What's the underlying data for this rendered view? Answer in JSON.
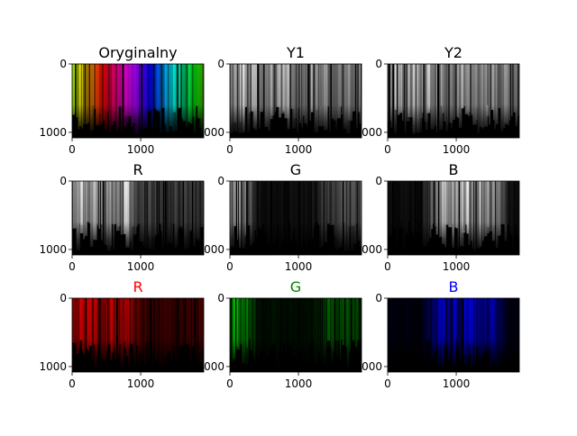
{
  "figure": {
    "background": "#ffffff"
  },
  "chart_data": [
    {
      "type": "heatmap",
      "title": "Oryginalny",
      "title_color": "#000000",
      "image_style": "rainbow-original",
      "xlim": [
        0,
        1920
      ],
      "ylim": [
        1080,
        0
      ],
      "xticks": [
        0,
        1000
      ],
      "yticks": [
        0,
        1000
      ],
      "xtick_labels": [
        "0",
        "1000"
      ],
      "ytick_labels": [
        "0",
        "1000"
      ]
    },
    {
      "type": "heatmap",
      "title": "Y1",
      "title_color": "#000000",
      "image_style": "gray-luma",
      "xlim": [
        0,
        1920
      ],
      "ylim": [
        1080,
        0
      ],
      "xticks": [
        0,
        1000
      ],
      "yticks": [
        0,
        1000
      ],
      "xtick_labels": [
        "0",
        "1000"
      ],
      "ytick_labels": [
        "0",
        "1000"
      ]
    },
    {
      "type": "heatmap",
      "title": "Y2",
      "title_color": "#000000",
      "image_style": "gray-luma",
      "xlim": [
        0,
        1920
      ],
      "ylim": [
        1080,
        0
      ],
      "xticks": [
        0,
        1000
      ],
      "yticks": [
        0,
        1000
      ],
      "xtick_labels": [
        "0",
        "1000"
      ],
      "ytick_labels": [
        "0",
        "1000"
      ]
    },
    {
      "type": "heatmap",
      "title": "R",
      "title_color": "#000000",
      "image_style": "gray-red",
      "xlim": [
        0,
        1920
      ],
      "ylim": [
        1080,
        0
      ],
      "xticks": [
        0,
        1000
      ],
      "yticks": [
        0,
        1000
      ],
      "xtick_labels": [
        "0",
        "1000"
      ],
      "ytick_labels": [
        "0",
        "1000"
      ]
    },
    {
      "type": "heatmap",
      "title": "G",
      "title_color": "#000000",
      "image_style": "gray-green",
      "xlim": [
        0,
        1920
      ],
      "ylim": [
        1080,
        0
      ],
      "xticks": [
        0,
        1000
      ],
      "yticks": [
        0,
        1000
      ],
      "xtick_labels": [
        "0",
        "1000"
      ],
      "ytick_labels": [
        "0",
        "1000"
      ]
    },
    {
      "type": "heatmap",
      "title": "B",
      "title_color": "#000000",
      "image_style": "gray-blue",
      "xlim": [
        0,
        1920
      ],
      "ylim": [
        1080,
        0
      ],
      "xticks": [
        0,
        1000
      ],
      "yticks": [
        0,
        1000
      ],
      "xtick_labels": [
        "0",
        "1000"
      ],
      "ytick_labels": [
        "0",
        "1000"
      ]
    },
    {
      "type": "heatmap",
      "title": "R",
      "title_color": "#ff0000",
      "image_style": "channel-red",
      "xlim": [
        0,
        1920
      ],
      "ylim": [
        1080,
        0
      ],
      "xticks": [
        0,
        1000
      ],
      "yticks": [
        0,
        1000
      ],
      "xtick_labels": [
        "0",
        "1000"
      ],
      "ytick_labels": [
        "0",
        "1000"
      ]
    },
    {
      "type": "heatmap",
      "title": "G",
      "title_color": "#008000",
      "image_style": "channel-green",
      "xlim": [
        0,
        1920
      ],
      "ylim": [
        1080,
        0
      ],
      "xticks": [
        0,
        1000
      ],
      "yticks": [
        0,
        1000
      ],
      "xtick_labels": [
        "0",
        "1000"
      ],
      "ytick_labels": [
        "0",
        "1000"
      ]
    },
    {
      "type": "heatmap",
      "title": "B",
      "title_color": "#0000ff",
      "image_style": "channel-blue",
      "xlim": [
        0,
        1920
      ],
      "ylim": [
        1080,
        0
      ],
      "xticks": [
        0,
        1000
      ],
      "yticks": [
        0,
        1000
      ],
      "xtick_labels": [
        "0",
        "1000"
      ],
      "ytick_labels": [
        "0",
        "1000"
      ]
    }
  ]
}
